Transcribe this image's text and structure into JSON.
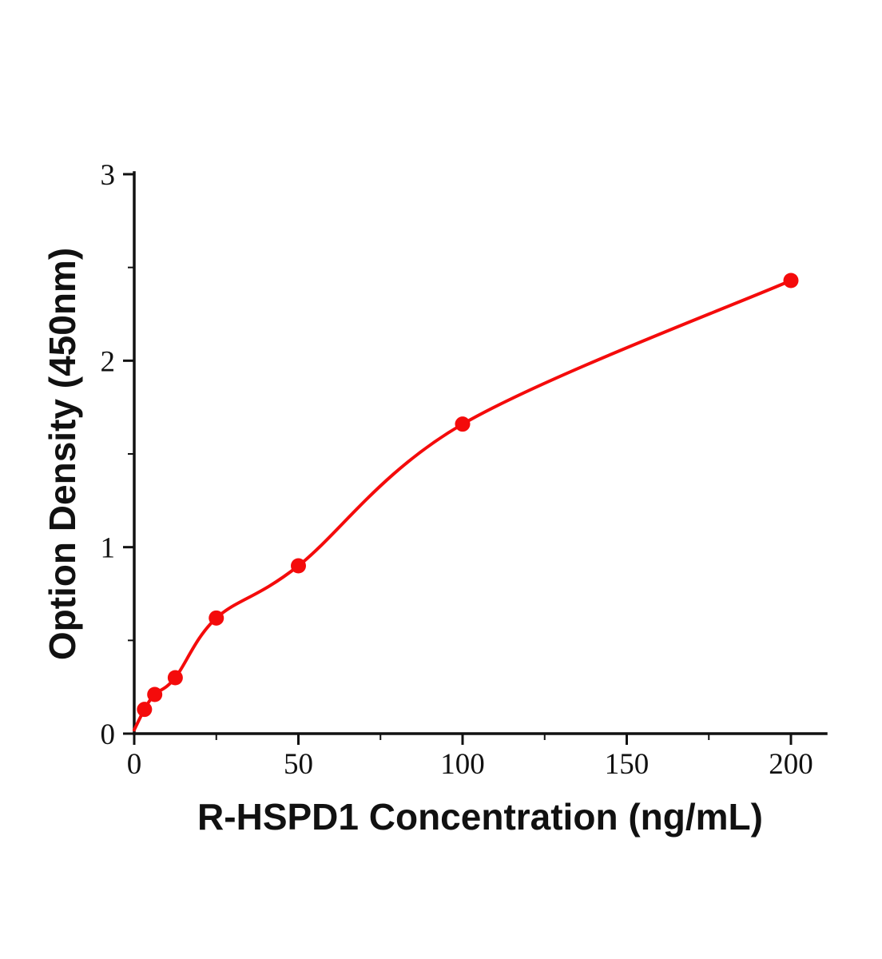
{
  "chart_data": {
    "type": "scatter",
    "title": "",
    "xlabel": "R-HSPD1 Concentration (ng/mL)",
    "ylabel": "Option Density (450nm)",
    "x": [
      3.125,
      6.25,
      12.5,
      25,
      50,
      100,
      200
    ],
    "y": [
      0.13,
      0.21,
      0.3,
      0.62,
      0.9,
      1.66,
      2.43
    ],
    "curve_start": {
      "x": 0,
      "y": 0.02
    },
    "xlim": [
      0,
      210
    ],
    "ylim": [
      0,
      3
    ],
    "xticks": [
      0,
      50,
      100,
      150,
      200
    ],
    "yticks": [
      0,
      1,
      2,
      3
    ],
    "xticks_minor": [
      25,
      75,
      125,
      175
    ],
    "yticks_minor": [
      0.5,
      1.5,
      2.5
    ],
    "legend": "none",
    "grid": "off",
    "colors": {
      "point": "#f40b0b",
      "line": "#f40b0b",
      "axis": "#111111"
    }
  }
}
